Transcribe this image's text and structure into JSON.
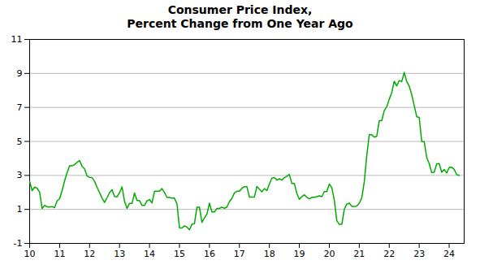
{
  "chart_data": {
    "type": "line",
    "title": "Consumer Price Index,\nPercent Change from One Year Ago",
    "color": "#00aa00",
    "xlim": [
      10,
      24.5
    ],
    "ylim": [
      -1,
      11
    ],
    "xticks": [
      10,
      11,
      12,
      13,
      14,
      15,
      16,
      17,
      18,
      19,
      20,
      21,
      22,
      23,
      24
    ],
    "yticks": [
      -1,
      1,
      3,
      5,
      7,
      9,
      11
    ],
    "grid": "y",
    "x": [
      10.0,
      10.083,
      10.167,
      10.25,
      10.333,
      10.417,
      10.5,
      10.583,
      10.667,
      10.75,
      10.833,
      10.917,
      11.0,
      11.083,
      11.167,
      11.25,
      11.333,
      11.417,
      11.5,
      11.583,
      11.667,
      11.75,
      11.833,
      11.917,
      12.0,
      12.083,
      12.167,
      12.25,
      12.333,
      12.417,
      12.5,
      12.583,
      12.667,
      12.75,
      12.833,
      12.917,
      13.0,
      13.083,
      13.167,
      13.25,
      13.333,
      13.417,
      13.5,
      13.583,
      13.667,
      13.75,
      13.833,
      13.917,
      14.0,
      14.083,
      14.167,
      14.25,
      14.333,
      14.417,
      14.5,
      14.583,
      14.667,
      14.75,
      14.833,
      14.917,
      15.0,
      15.083,
      15.167,
      15.25,
      15.333,
      15.417,
      15.5,
      15.583,
      15.667,
      15.75,
      15.833,
      15.917,
      16.0,
      16.083,
      16.167,
      16.25,
      16.333,
      16.417,
      16.5,
      16.583,
      16.667,
      16.75,
      16.833,
      16.917,
      17.0,
      17.083,
      17.167,
      17.25,
      17.333,
      17.417,
      17.5,
      17.583,
      17.667,
      17.75,
      17.833,
      17.917,
      18.0,
      18.083,
      18.167,
      18.25,
      18.333,
      18.417,
      18.5,
      18.583,
      18.667,
      18.75,
      18.833,
      18.917,
      19.0,
      19.083,
      19.167,
      19.25,
      19.333,
      19.417,
      19.5,
      19.583,
      19.667,
      19.75,
      19.833,
      19.917,
      20.0,
      20.083,
      20.167,
      20.25,
      20.333,
      20.417,
      20.5,
      20.583,
      20.667,
      20.75,
      20.833,
      20.917,
      21.0,
      21.083,
      21.167,
      21.25,
      21.333,
      21.417,
      21.5,
      21.583,
      21.667,
      21.75,
      21.833,
      21.917,
      22.0,
      22.083,
      22.167,
      22.25,
      22.333,
      22.417,
      22.5,
      22.583,
      22.667,
      22.75,
      22.833,
      22.917,
      23.0,
      23.083,
      23.167,
      23.25,
      23.333,
      23.417,
      23.5,
      23.583,
      23.667,
      23.75,
      23.833,
      23.917,
      24.0,
      24.083,
      24.167,
      24.25,
      24.333
    ],
    "values": [
      2.63,
      2.11,
      2.31,
      2.24,
      2.02,
      1.05,
      1.24,
      1.15,
      1.14,
      1.17,
      1.1,
      1.5,
      1.63,
      2.11,
      2.68,
      3.16,
      3.57,
      3.56,
      3.63,
      3.77,
      3.87,
      3.53,
      3.39,
      2.96,
      2.89,
      2.87,
      2.65,
      2.3,
      1.99,
      1.66,
      1.41,
      1.69,
      1.99,
      2.16,
      1.76,
      1.74,
      1.98,
      2.32,
      1.47,
      1.06,
      1.36,
      1.36,
      1.96,
      1.52,
      1.52,
      1.24,
      1.24,
      1.5,
      1.58,
      1.37,
      2.07,
      2.07,
      2.07,
      2.22,
      1.99,
      1.7,
      1.7,
      1.66,
      1.66,
      1.32,
      -0.09,
      -0.09,
      0.03,
      -0.04,
      -0.2,
      0.12,
      0.17,
      1.13,
      1.13,
      0.24,
      0.5,
      0.73,
      1.37,
      0.85,
      0.85,
      1.06,
      1.06,
      1.13,
      1.06,
      1.14,
      1.46,
      1.64,
      1.97,
      2.07,
      2.07,
      2.24,
      2.34,
      2.34,
      1.73,
      1.73,
      1.73,
      2.35,
      2.19,
      2.04,
      2.22,
      2.11,
      2.49,
      2.84,
      2.87,
      2.72,
      2.8,
      2.72,
      2.87,
      2.95,
      3.06,
      2.52,
      2.52,
      1.94,
      1.59,
      1.75,
      1.86,
      1.71,
      1.62,
      1.71,
      1.71,
      1.75,
      1.8,
      1.75,
      2.05,
      2.05,
      2.49,
      2.28,
      1.54,
      0.33,
      0.12,
      0.12,
      1.01,
      1.31,
      1.37,
      1.18,
      1.17,
      1.2,
      1.36,
      1.68,
      2.62,
      4.16,
      5.39,
      5.39,
      5.25,
      5.3,
      6.22,
      6.22,
      6.81,
      7.04,
      7.48,
      7.87,
      8.54,
      8.26,
      8.58,
      8.52,
      9.06,
      8.52,
      8.26,
      7.75,
      7.11,
      6.45,
      6.41,
      5.0,
      4.98,
      4.05,
      3.7,
      3.17,
      3.18,
      3.67,
      3.7,
      3.18,
      3.35,
      3.14,
      3.47,
      3.48,
      3.36,
      3.04,
      3.0
    ]
  }
}
